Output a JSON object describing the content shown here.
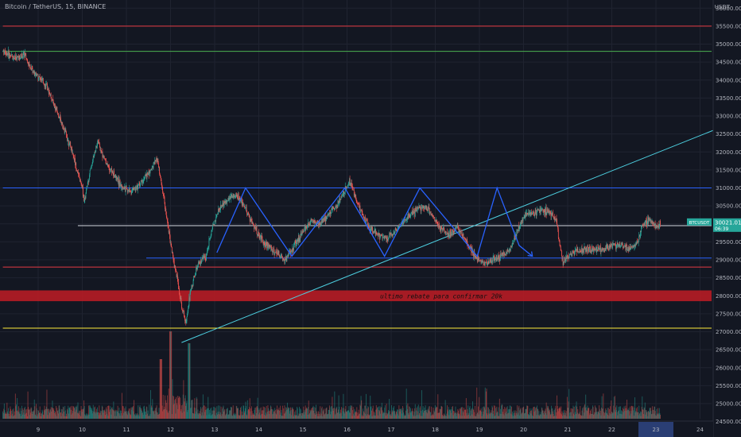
{
  "header": {
    "symbol_title": "Bitcoin / TetherUS, 15, BINANCE",
    "price_unit": "USDT"
  },
  "annotation": {
    "note": "ultimo rebate para confirmar 20k"
  },
  "price_tag": {
    "symbol": "BTCUSDT",
    "price": "30021.01",
    "countdown": "06:39"
  },
  "colors": {
    "background": "#131722",
    "grid": "#1f2330",
    "axis_text": "#b2b5be",
    "up": "#26a69a",
    "down": "#ef5350",
    "resistance_red": "#e53b45",
    "green_level": "#4caf50",
    "blue_level": "#2962ff",
    "white_level": "#d1d4dc",
    "yellow_level": "#ffeb3b",
    "trendline": "#4dd0e1",
    "zone": "#b71c25",
    "zigzag": "#2962ff",
    "highlight_date": "#2a3e74"
  },
  "chart_data": {
    "type": "candlestick",
    "title": "Bitcoin / TetherUS, 15, BINANCE",
    "y_unit": "USDT",
    "ylim": [
      24300,
      36300
    ],
    "y_ticks": [
      36000,
      35500,
      35000,
      34500,
      34000,
      33500,
      33000,
      32500,
      32000,
      31500,
      31000,
      30500,
      30000,
      29500,
      29000,
      28500,
      28000,
      27500,
      27000,
      26500,
      26000,
      25500,
      25000,
      24500
    ],
    "x_ticks": [
      "9",
      "10",
      "11",
      "12",
      "13",
      "14",
      "15",
      "16",
      "17",
      "18",
      "19",
      "20",
      "21",
      "22",
      "23",
      "24"
    ],
    "x_tick_days": [
      9,
      10,
      11,
      12,
      13,
      14,
      15,
      16,
      17,
      18,
      19,
      20,
      21,
      22,
      23,
      24
    ],
    "xlim_days": [
      8.2,
      24.5
    ],
    "highlighted_x_tick": "23",
    "current_price": 30021.01,
    "price_path": [
      [
        8.2,
        34800
      ],
      [
        8.5,
        34600
      ],
      [
        8.7,
        34700
      ],
      [
        8.8,
        34400
      ],
      [
        9.0,
        34100
      ],
      [
        9.2,
        33800
      ],
      [
        9.4,
        33200
      ],
      [
        9.6,
        32600
      ],
      [
        9.8,
        31900
      ],
      [
        9.9,
        31400
      ],
      [
        10.0,
        31000
      ],
      [
        10.05,
        30600
      ],
      [
        10.1,
        31000
      ],
      [
        10.2,
        31600
      ],
      [
        10.35,
        32300
      ],
      [
        10.5,
        31800
      ],
      [
        10.7,
        31400
      ],
      [
        10.9,
        31000
      ],
      [
        11.1,
        30900
      ],
      [
        11.3,
        31100
      ],
      [
        11.5,
        31400
      ],
      [
        11.7,
        31800
      ],
      [
        11.75,
        31400
      ],
      [
        11.85,
        30700
      ],
      [
        11.95,
        29900
      ],
      [
        12.05,
        29100
      ],
      [
        12.15,
        28500
      ],
      [
        12.25,
        27700
      ],
      [
        12.35,
        27300
      ],
      [
        12.45,
        28100
      ],
      [
        12.6,
        28800
      ],
      [
        12.8,
        29100
      ],
      [
        12.95,
        29900
      ],
      [
        13.1,
        30400
      ],
      [
        13.3,
        30700
      ],
      [
        13.5,
        30800
      ],
      [
        13.7,
        30400
      ],
      [
        13.9,
        29900
      ],
      [
        14.1,
        29500
      ],
      [
        14.4,
        29200
      ],
      [
        14.6,
        29000
      ],
      [
        14.8,
        29400
      ],
      [
        15.0,
        29800
      ],
      [
        15.2,
        30100
      ],
      [
        15.4,
        30000
      ],
      [
        15.6,
        30300
      ],
      [
        15.8,
        30600
      ],
      [
        15.95,
        30900
      ],
      [
        16.05,
        31200
      ],
      [
        16.15,
        30900
      ],
      [
        16.3,
        30400
      ],
      [
        16.5,
        29900
      ],
      [
        16.7,
        29700
      ],
      [
        16.9,
        29600
      ],
      [
        17.1,
        29800
      ],
      [
        17.3,
        30100
      ],
      [
        17.5,
        30300
      ],
      [
        17.7,
        30500
      ],
      [
        17.9,
        30300
      ],
      [
        18.1,
        29900
      ],
      [
        18.3,
        29700
      ],
      [
        18.5,
        29900
      ],
      [
        18.7,
        29500
      ],
      [
        18.9,
        29100
      ],
      [
        19.1,
        28900
      ],
      [
        19.3,
        29000
      ],
      [
        19.5,
        29100
      ],
      [
        19.7,
        29300
      ],
      [
        19.9,
        29900
      ],
      [
        20.0,
        30200
      ],
      [
        20.2,
        30300
      ],
      [
        20.4,
        30400
      ],
      [
        20.6,
        30300
      ],
      [
        20.75,
        30100
      ],
      [
        20.8,
        29600
      ],
      [
        20.9,
        28900
      ],
      [
        21.0,
        29100
      ],
      [
        21.2,
        29250
      ],
      [
        21.5,
        29300
      ],
      [
        21.8,
        29300
      ],
      [
        22.0,
        29400
      ],
      [
        22.2,
        29400
      ],
      [
        22.4,
        29300
      ],
      [
        22.6,
        29500
      ],
      [
        22.7,
        30000
      ],
      [
        22.85,
        30150
      ],
      [
        23.0,
        29900
      ],
      [
        23.1,
        30021
      ]
    ],
    "horizontal_levels": [
      {
        "price": 35500,
        "color": "#e53b45",
        "from_day": 8.2
      },
      {
        "price": 34800,
        "color": "#4caf50",
        "from_day": 8.2
      },
      {
        "price": 31000,
        "color": "#2962ff",
        "from_day": 8.2
      },
      {
        "price": 29950,
        "color": "#d1d4dc",
        "from_day": 9.9
      },
      {
        "price": 29050,
        "color": "#2962ff",
        "from_day": 11.45
      },
      {
        "price": 28800,
        "color": "#e53b45",
        "from_day": 8.2
      },
      {
        "price": 27100,
        "color": "#ffeb3b",
        "from_day": 8.2
      }
    ],
    "zone": {
      "from_price": 27850,
      "to_price": 28150,
      "color": "#b71c25"
    },
    "trendline": {
      "from": [
        12.25,
        26700
      ],
      "to": [
        24.5,
        32700
      ],
      "color": "#4dd0e1"
    },
    "zigzag": [
      [
        13.05,
        29200
      ],
      [
        13.7,
        31000
      ],
      [
        14.75,
        29100
      ],
      [
        15.95,
        31000
      ],
      [
        16.85,
        29100
      ],
      [
        17.65,
        31000
      ],
      [
        18.95,
        29100
      ],
      [
        19.4,
        31000
      ],
      [
        19.9,
        29400
      ],
      [
        20.2,
        29100
      ]
    ]
  }
}
